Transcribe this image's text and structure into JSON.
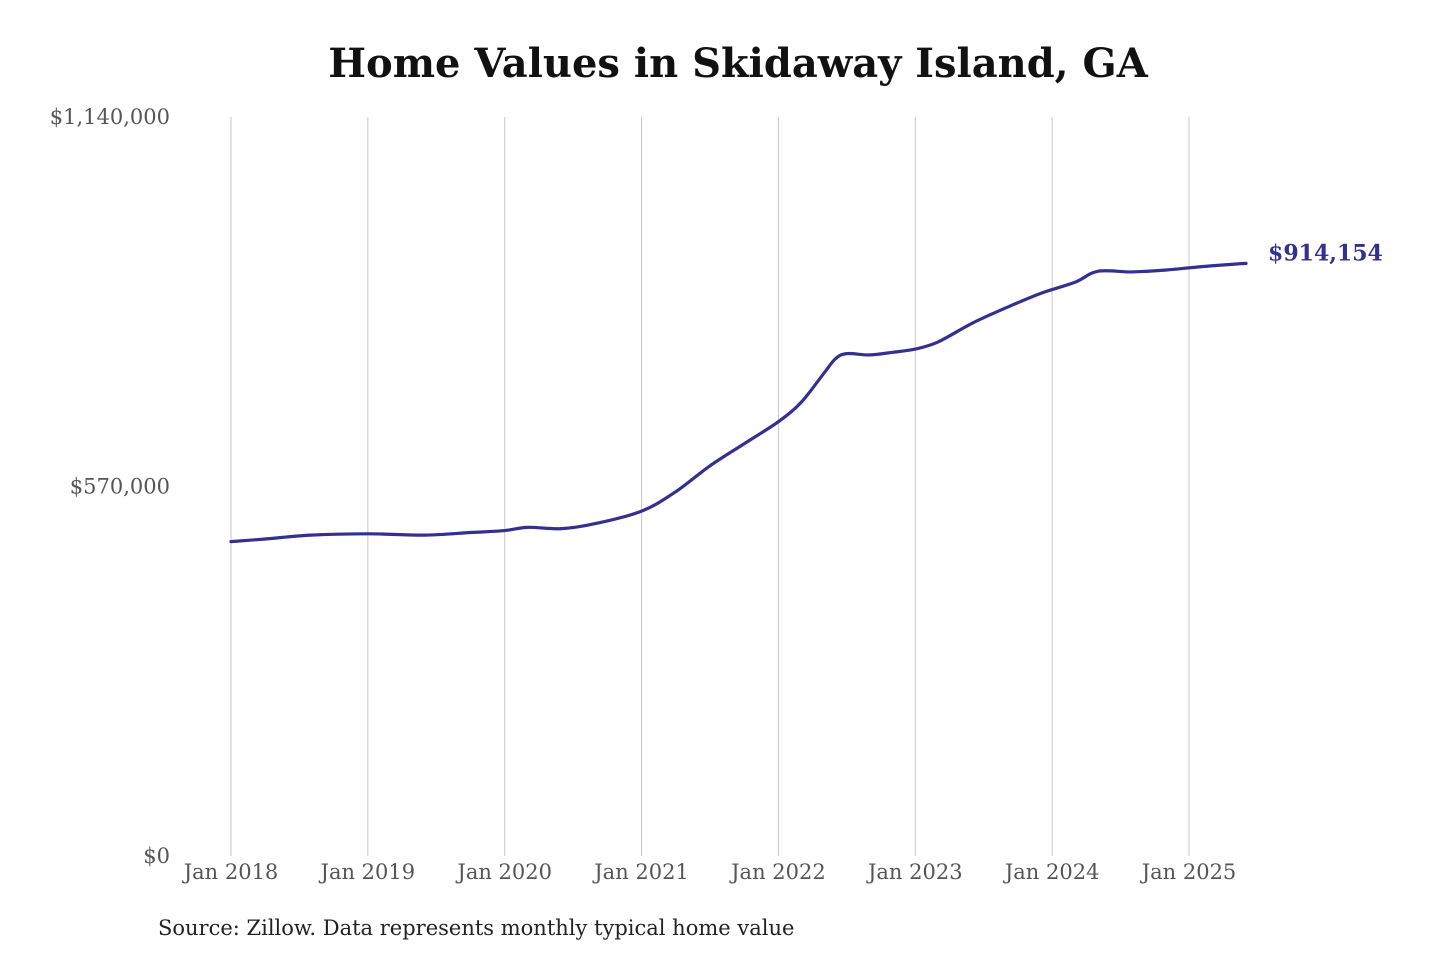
{
  "title": "Home Values in Skidaway Island, GA",
  "source": "Source: Zillow. Data represents monthly typical home value",
  "colors": {
    "line": "#33308f",
    "grid": "#c8c8c8",
    "text": "#555555"
  },
  "chart_data": {
    "type": "line",
    "title": "Home Values in Skidaway Island, GA",
    "xlabel": "",
    "ylabel": "",
    "grid": "vertical",
    "ylim": [
      0,
      1140000
    ],
    "y_ticks": [
      {
        "value": 0,
        "label": "$0"
      },
      {
        "value": 570000,
        "label": "$570,000"
      },
      {
        "value": 1140000,
        "label": "$1,140,000"
      }
    ],
    "x_ticks": [
      {
        "date": "2018-01",
        "label": "Jan 2018"
      },
      {
        "date": "2019-01",
        "label": "Jan 2019"
      },
      {
        "date": "2020-01",
        "label": "Jan 2020"
      },
      {
        "date": "2021-01",
        "label": "Jan 2021"
      },
      {
        "date": "2022-01",
        "label": "Jan 2022"
      },
      {
        "date": "2023-01",
        "label": "Jan 2023"
      },
      {
        "date": "2024-01",
        "label": "Jan 2024"
      },
      {
        "date": "2025-01",
        "label": "Jan 2025"
      }
    ],
    "end_label": "$914,154",
    "series": [
      {
        "points": [
          {
            "date": "2018-01",
            "value": 485000
          },
          {
            "date": "2018-04",
            "value": 489000
          },
          {
            "date": "2018-08",
            "value": 495000
          },
          {
            "date": "2019-01",
            "value": 497000
          },
          {
            "date": "2019-06",
            "value": 495000
          },
          {
            "date": "2019-10",
            "value": 499000
          },
          {
            "date": "2020-01",
            "value": 502000
          },
          {
            "date": "2020-03",
            "value": 507000
          },
          {
            "date": "2020-06",
            "value": 505000
          },
          {
            "date": "2020-09",
            "value": 513000
          },
          {
            "date": "2021-01",
            "value": 532000
          },
          {
            "date": "2021-04",
            "value": 562000
          },
          {
            "date": "2021-07",
            "value": 602000
          },
          {
            "date": "2021-10",
            "value": 636000
          },
          {
            "date": "2022-01",
            "value": 670000
          },
          {
            "date": "2022-03",
            "value": 700000
          },
          {
            "date": "2022-05",
            "value": 745000
          },
          {
            "date": "2022-06",
            "value": 767000
          },
          {
            "date": "2022-07",
            "value": 775000
          },
          {
            "date": "2022-09",
            "value": 773000
          },
          {
            "date": "2022-11",
            "value": 777000
          },
          {
            "date": "2023-01",
            "value": 782000
          },
          {
            "date": "2023-03",
            "value": 793000
          },
          {
            "date": "2023-06",
            "value": 822000
          },
          {
            "date": "2023-09",
            "value": 846000
          },
          {
            "date": "2023-12",
            "value": 868000
          },
          {
            "date": "2024-03",
            "value": 885000
          },
          {
            "date": "2024-05",
            "value": 902000
          },
          {
            "date": "2024-08",
            "value": 901000
          },
          {
            "date": "2024-11",
            "value": 904000
          },
          {
            "date": "2025-02",
            "value": 909000
          },
          {
            "date": "2025-05",
            "value": 913000
          },
          {
            "date": "2025-06",
            "value": 914154
          }
        ]
      }
    ]
  }
}
